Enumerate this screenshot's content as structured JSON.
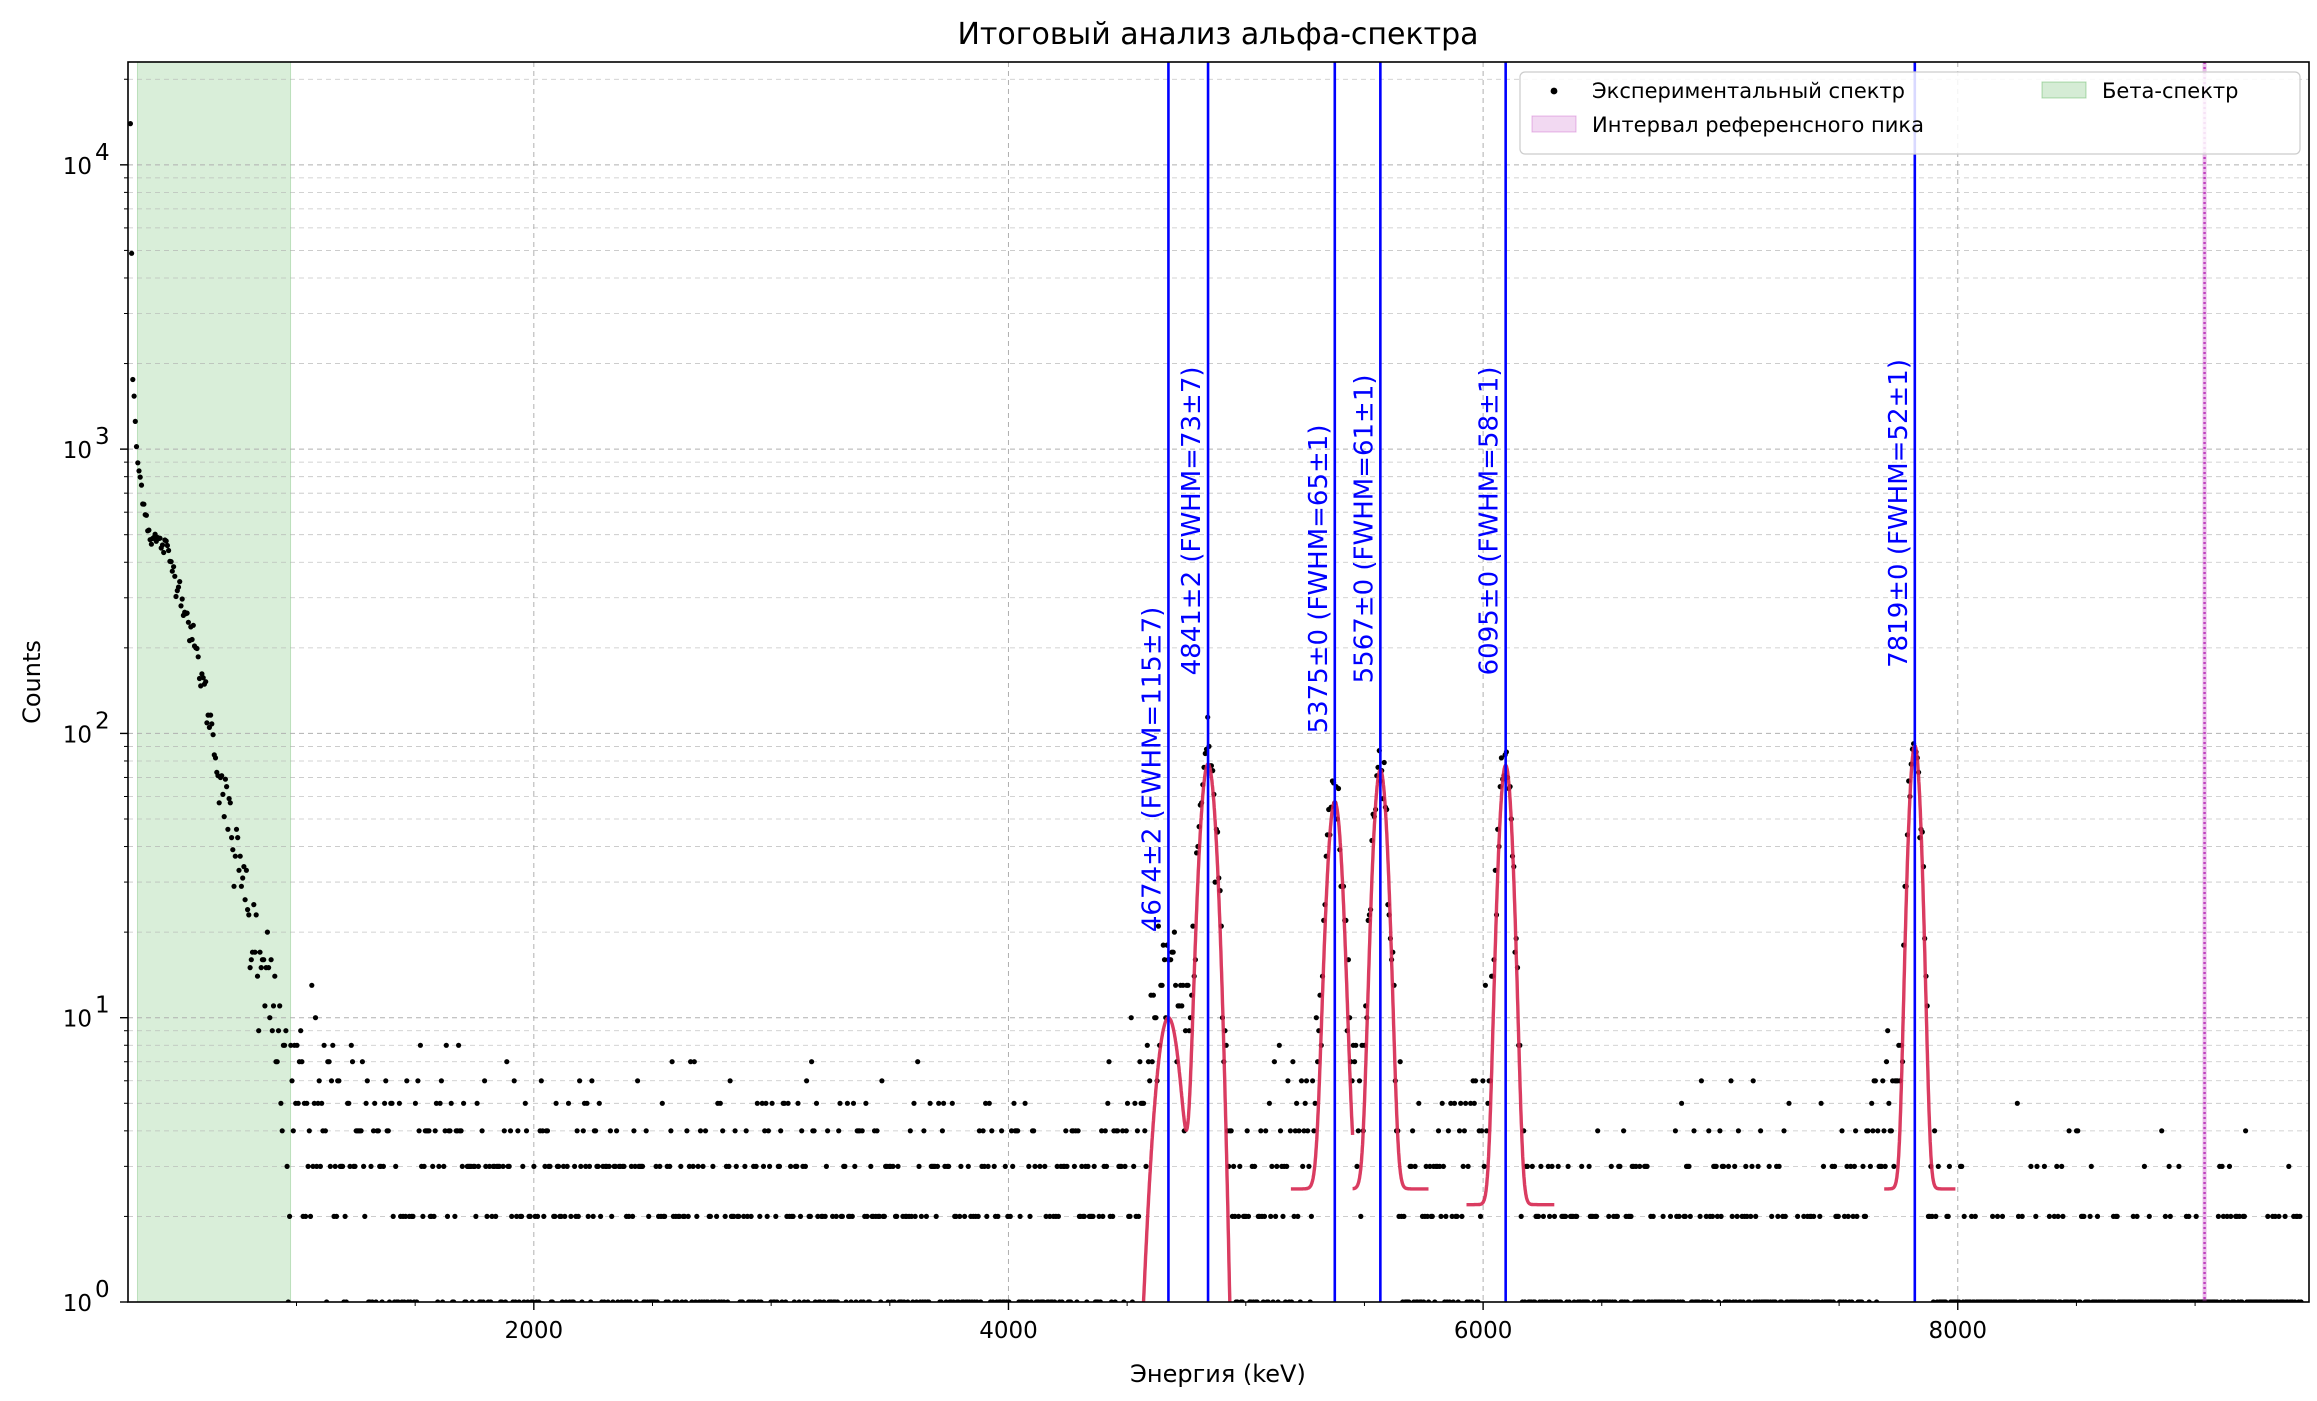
{
  "chart_data": {
    "type": "scatter",
    "title": "Итоговый анализ альфа-спектра",
    "xlabel": "Энергия (keV)",
    "ylabel": "Counts",
    "xlim": [
      290,
      9480
    ],
    "ylim": [
      1,
      23000
    ],
    "yscale": "log",
    "xticks": [
      2000,
      4000,
      6000,
      8000
    ],
    "yticks": [
      {
        "value": 1,
        "base": "10",
        "exp": "0"
      },
      {
        "value": 10,
        "base": "10",
        "exp": "1"
      },
      {
        "value": 100,
        "base": "10",
        "exp": "2"
      },
      {
        "value": 1000,
        "base": "10",
        "exp": "3"
      },
      {
        "value": 10000,
        "base": "10",
        "exp": "4"
      }
    ],
    "grid": true,
    "legend": {
      "placement": "top-right",
      "entries": [
        {
          "label": "Экспериментальный спектр",
          "kind": "marker",
          "color": "#000000"
        },
        {
          "label": "Бета-спектр",
          "kind": "patch",
          "color": "#2ca02c"
        },
        {
          "label": "Интервал референсного пика",
          "kind": "patch",
          "color": "#bf40bf"
        }
      ]
    },
    "beta_band": [
      330,
      975
    ],
    "reference_line": 9040,
    "colors": {
      "data": "#000000",
      "fit": "#d62750",
      "peak_line": "#0000ff",
      "beta": "#2ca02c",
      "reference": "#bf40bf"
    },
    "peaks": [
      {
        "energy": 4674,
        "label": "4674±2 (FWHM=115±7)",
        "fwhm": 115,
        "amp": 10,
        "fit_range": [
          4560,
          4960
        ],
        "label_top": 20
      },
      {
        "energy": 4841,
        "label": "4841±2 (FWHM=73±7)",
        "fwhm": 73,
        "amp": 78,
        "fit_range": [
          4560,
          4960
        ],
        "label_top": 160
      },
      {
        "energy": 5375,
        "label": "5375±0 (FWHM=65±1)",
        "fwhm": 65,
        "amp": 55,
        "fit_range": [
          5190,
          5450
        ],
        "base": 2.5,
        "label_top": 100
      },
      {
        "energy": 5567,
        "label": "5567±0 (FWHM=61±1)",
        "fwhm": 61,
        "amp": 72,
        "fit_range": [
          5450,
          5770
        ],
        "base": 2.5,
        "label_top": 150
      },
      {
        "energy": 6095,
        "label": "6095±0 (FWHM=58±1)",
        "fwhm": 58,
        "amp": 75,
        "fit_range": [
          5930,
          6300
        ],
        "base": 2.2,
        "label_top": 160
      },
      {
        "energy": 7819,
        "label": "7819±0 (FWHM=52±1)",
        "fwhm": 52,
        "amp": 88,
        "fit_range": [
          7690,
          7990
        ],
        "base": 2.5,
        "label_top": 170
      }
    ],
    "continuum": [
      {
        "x": 300,
        "y": 14000
      },
      {
        "x": 310,
        "y": 1800
      },
      {
        "x": 330,
        "y": 900
      },
      {
        "x": 380,
        "y": 500
      },
      {
        "x": 450,
        "y": 450
      },
      {
        "x": 520,
        "y": 300
      },
      {
        "x": 600,
        "y": 160
      },
      {
        "x": 680,
        "y": 70
      },
      {
        "x": 750,
        "y": 35
      },
      {
        "x": 820,
        "y": 20
      },
      {
        "x": 880,
        "y": 12
      },
      {
        "x": 950,
        "y": 8
      },
      {
        "x": 1050,
        "y": 5
      },
      {
        "x": 1200,
        "y": 4
      },
      {
        "x": 1400,
        "y": 3.2
      },
      {
        "x": 2000,
        "y": 2.6
      },
      {
        "x": 2500,
        "y": 2.4
      },
      {
        "x": 3000,
        "y": 2.2
      },
      {
        "x": 3500,
        "y": 2.0
      },
      {
        "x": 4200,
        "y": 2.0
      },
      {
        "x": 4600,
        "y": 2.2
      },
      {
        "x": 5200,
        "y": 2.0
      },
      {
        "x": 6400,
        "y": 1.6
      },
      {
        "x": 7600,
        "y": 1.6
      },
      {
        "x": 8100,
        "y": 1.2
      },
      {
        "x": 9400,
        "y": 1.0
      }
    ]
  }
}
